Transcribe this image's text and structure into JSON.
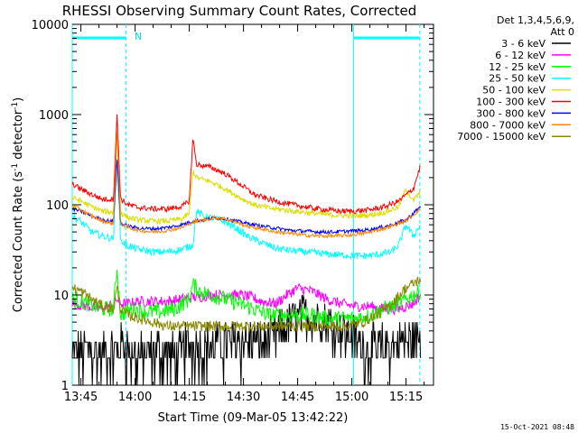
{
  "chart_data": {
    "type": "line",
    "title": "RHESSI Observing Summary Count Rates, Corrected",
    "xlabel": "Start Time (09-Mar-05 13:42:22)",
    "ylabel_main": "Corrected Count Rate (s",
    "ylabel_sup1": "-1",
    "ylabel_mid": " detector",
    "ylabel_sup2": "-1",
    "ylabel_end": ")",
    "yscale": "log",
    "ylim": [
      1,
      10000
    ],
    "xlim_minutes": [
      -2.4,
      97.6
    ],
    "x_ticks": [
      {
        "m": 0,
        "label": "13:45"
      },
      {
        "m": 15,
        "label": "14:00"
      },
      {
        "m": 30,
        "label": "14:15"
      },
      {
        "m": 45,
        "label": "14:30"
      },
      {
        "m": 60,
        "label": "14:45"
      },
      {
        "m": 75,
        "label": "15:00"
      },
      {
        "m": 90,
        "label": "15:15"
      }
    ],
    "y_ticks": [
      {
        "v": 1,
        "label": "1"
      },
      {
        "v": 10,
        "label": "10"
      },
      {
        "v": 100,
        "label": "100"
      },
      {
        "v": 1000,
        "label": "1000"
      },
      {
        "v": 10000,
        "label": "10000"
      }
    ],
    "legend": {
      "placement": "top-right",
      "header1": "Det 1,3,4,5,6,9,",
      "header2": "Att 0"
    },
    "annotations": {
      "night_marker": "N",
      "footer_date": "15-Oct-2021 08:48"
    },
    "series": [
      {
        "name": "3 - 6 keV",
        "color": "#000000",
        "points": [
          [
            -2.4,
            2
          ],
          [
            2,
            2.5
          ],
          [
            6,
            2
          ],
          [
            10,
            2.5
          ],
          [
            12,
            3
          ],
          [
            14,
            2
          ],
          [
            18,
            2
          ],
          [
            22,
            2.5
          ],
          [
            26,
            2
          ],
          [
            30,
            3
          ],
          [
            34,
            2.5
          ],
          [
            38,
            3
          ],
          [
            42,
            3
          ],
          [
            46,
            3
          ],
          [
            50,
            3
          ],
          [
            54,
            3.5
          ],
          [
            58,
            5
          ],
          [
            62,
            6
          ],
          [
            66,
            5.5
          ],
          [
            70,
            4.5
          ],
          [
            74,
            3.5
          ],
          [
            76,
            3
          ],
          [
            80,
            2.5
          ],
          [
            84,
            2.5
          ],
          [
            88,
            3
          ],
          [
            92,
            3
          ],
          [
            94,
            3.5
          ]
        ]
      },
      {
        "name": "6 - 12 keV",
        "color": "#ff00ff",
        "points": [
          [
            -2.4,
            8
          ],
          [
            2,
            7.5
          ],
          [
            6,
            7
          ],
          [
            9,
            8
          ],
          [
            10,
            9
          ],
          [
            11,
            8
          ],
          [
            13,
            8
          ],
          [
            16,
            8.5
          ],
          [
            20,
            8.5
          ],
          [
            24,
            8.5
          ],
          [
            28,
            9
          ],
          [
            31,
            9.5
          ],
          [
            33,
            9.5
          ],
          [
            36,
            10
          ],
          [
            40,
            10
          ],
          [
            44,
            10
          ],
          [
            47,
            9.5
          ],
          [
            50,
            8.5
          ],
          [
            54,
            8
          ],
          [
            57,
            10
          ],
          [
            60,
            12
          ],
          [
            64,
            11
          ],
          [
            68,
            9
          ],
          [
            72,
            8
          ],
          [
            76,
            7.5
          ],
          [
            80,
            7.5
          ],
          [
            84,
            7
          ],
          [
            88,
            7
          ],
          [
            92,
            8
          ],
          [
            94,
            10
          ]
        ]
      },
      {
        "name": "12 - 25 keV",
        "color": "#00ff00",
        "points": [
          [
            -2.4,
            9
          ],
          [
            2,
            8
          ],
          [
            6,
            7
          ],
          [
            9,
            7
          ],
          [
            10,
            20
          ],
          [
            11,
            6
          ],
          [
            14,
            7
          ],
          [
            18,
            6.5
          ],
          [
            22,
            6.5
          ],
          [
            26,
            7
          ],
          [
            30,
            9
          ],
          [
            31,
            13
          ],
          [
            33,
            11
          ],
          [
            36,
            10
          ],
          [
            40,
            9
          ],
          [
            44,
            8
          ],
          [
            48,
            7
          ],
          [
            52,
            6
          ],
          [
            56,
            6
          ],
          [
            60,
            6
          ],
          [
            64,
            6
          ],
          [
            68,
            5.5
          ],
          [
            72,
            5.5
          ],
          [
            76,
            5.5
          ],
          [
            80,
            6
          ],
          [
            84,
            7
          ],
          [
            88,
            8
          ],
          [
            92,
            10
          ],
          [
            94,
            11
          ]
        ]
      },
      {
        "name": "25 - 50 keV",
        "color": "#00ffff",
        "points": [
          [
            -2.4,
            75
          ],
          [
            0,
            65
          ],
          [
            3,
            50
          ],
          [
            6,
            45
          ],
          [
            9,
            42
          ],
          [
            10,
            360
          ],
          [
            11,
            40
          ],
          [
            13,
            35
          ],
          [
            16,
            32
          ],
          [
            20,
            30
          ],
          [
            24,
            30
          ],
          [
            28,
            32
          ],
          [
            31,
            36
          ],
          [
            32,
            85
          ],
          [
            34,
            75
          ],
          [
            37,
            70
          ],
          [
            40,
            64
          ],
          [
            43,
            55
          ],
          [
            46,
            45
          ],
          [
            50,
            38
          ],
          [
            54,
            33
          ],
          [
            58,
            31
          ],
          [
            62,
            30
          ],
          [
            66,
            29
          ],
          [
            70,
            28
          ],
          [
            74,
            27.5
          ],
          [
            78,
            27
          ],
          [
            82,
            28
          ],
          [
            86,
            30
          ],
          [
            88,
            36
          ],
          [
            90,
            60
          ],
          [
            92,
            45
          ],
          [
            94,
            60
          ]
        ]
      },
      {
        "name": "50 - 100 keV",
        "color": "#dddd00",
        "points": [
          [
            -2.4,
            120
          ],
          [
            0,
            110
          ],
          [
            3,
            95
          ],
          [
            6,
            85
          ],
          [
            9,
            82
          ],
          [
            10,
            600
          ],
          [
            11,
            82
          ],
          [
            13,
            72
          ],
          [
            16,
            68
          ],
          [
            20,
            66
          ],
          [
            24,
            66
          ],
          [
            28,
            70
          ],
          [
            30,
            80
          ],
          [
            31,
            240
          ],
          [
            32,
            200
          ],
          [
            36,
            180
          ],
          [
            40,
            150
          ],
          [
            44,
            120
          ],
          [
            48,
            100
          ],
          [
            52,
            92
          ],
          [
            56,
            88
          ],
          [
            60,
            84
          ],
          [
            64,
            81
          ],
          [
            68,
            78
          ],
          [
            72,
            76
          ],
          [
            76,
            75
          ],
          [
            80,
            77
          ],
          [
            84,
            82
          ],
          [
            88,
            95
          ],
          [
            90,
            150
          ],
          [
            92,
            110
          ],
          [
            94,
            140
          ]
        ]
      },
      {
        "name": "100 - 300 keV",
        "color": "#ff0000",
        "points": [
          [
            -2.4,
            170
          ],
          [
            0,
            150
          ],
          [
            3,
            130
          ],
          [
            6,
            115
          ],
          [
            9,
            115
          ],
          [
            10,
            1000
          ],
          [
            11,
            115
          ],
          [
            13,
            100
          ],
          [
            16,
            93
          ],
          [
            20,
            90
          ],
          [
            24,
            90
          ],
          [
            28,
            96
          ],
          [
            30,
            110
          ],
          [
            31,
            550
          ],
          [
            32,
            280
          ],
          [
            36,
            260
          ],
          [
            40,
            220
          ],
          [
            44,
            170
          ],
          [
            48,
            130
          ],
          [
            52,
            115
          ],
          [
            56,
            105
          ],
          [
            60,
            98
          ],
          [
            64,
            92
          ],
          [
            68,
            88
          ],
          [
            72,
            85
          ],
          [
            76,
            85
          ],
          [
            80,
            88
          ],
          [
            84,
            95
          ],
          [
            88,
            110
          ],
          [
            92,
            150
          ],
          [
            94,
            270
          ]
        ]
      },
      {
        "name": "300 - 800 keV",
        "color": "#0000ff",
        "points": [
          [
            -2.4,
            90
          ],
          [
            0,
            85
          ],
          [
            3,
            75
          ],
          [
            6,
            68
          ],
          [
            9,
            65
          ],
          [
            10,
            330
          ],
          [
            11,
            62
          ],
          [
            13,
            58
          ],
          [
            16,
            55
          ],
          [
            20,
            54
          ],
          [
            24,
            56
          ],
          [
            28,
            60
          ],
          [
            31,
            66
          ],
          [
            34,
            68
          ],
          [
            37,
            72
          ],
          [
            40,
            70
          ],
          [
            43,
            66
          ],
          [
            46,
            62
          ],
          [
            50,
            58
          ],
          [
            54,
            55
          ],
          [
            58,
            52
          ],
          [
            62,
            51
          ],
          [
            66,
            50
          ],
          [
            70,
            50
          ],
          [
            74,
            51
          ],
          [
            78,
            52
          ],
          [
            82,
            55
          ],
          [
            86,
            60
          ],
          [
            90,
            68
          ],
          [
            94,
            95
          ]
        ]
      },
      {
        "name": "800 - 7000 keV",
        "color": "#ff8800",
        "points": [
          [
            -2.4,
            98
          ],
          [
            0,
            88
          ],
          [
            3,
            75
          ],
          [
            6,
            66
          ],
          [
            9,
            62
          ],
          [
            10,
            700
          ],
          [
            11,
            62
          ],
          [
            13,
            56
          ],
          [
            16,
            52
          ],
          [
            20,
            50
          ],
          [
            24,
            52
          ],
          [
            28,
            56
          ],
          [
            31,
            64
          ],
          [
            34,
            68
          ],
          [
            37,
            72
          ],
          [
            40,
            70
          ],
          [
            43,
            64
          ],
          [
            46,
            58
          ],
          [
            50,
            54
          ],
          [
            54,
            50
          ],
          [
            58,
            48
          ],
          [
            62,
            46
          ],
          [
            66,
            45
          ],
          [
            70,
            45
          ],
          [
            74,
            46
          ],
          [
            78,
            48
          ],
          [
            82,
            52
          ],
          [
            86,
            58
          ],
          [
            90,
            66
          ],
          [
            94,
            90
          ]
        ]
      },
      {
        "name": "7000 - 15000 keV",
        "color": "#888800",
        "points": [
          [
            -2.4,
            12
          ],
          [
            0,
            11
          ],
          [
            3,
            9
          ],
          [
            6,
            7.5
          ],
          [
            9,
            7
          ],
          [
            10,
            12
          ],
          [
            11,
            7
          ],
          [
            13,
            6
          ],
          [
            16,
            5.5
          ],
          [
            20,
            5
          ],
          [
            24,
            4.5
          ],
          [
            28,
            4.5
          ],
          [
            31,
            4.5
          ],
          [
            34,
            4.5
          ],
          [
            38,
            4.5
          ],
          [
            42,
            4.5
          ],
          [
            46,
            4.5
          ],
          [
            50,
            4.5
          ],
          [
            54,
            4.5
          ],
          [
            58,
            4.5
          ],
          [
            62,
            4.5
          ],
          [
            66,
            4.5
          ],
          [
            70,
            4.5
          ],
          [
            74,
            4.5
          ],
          [
            78,
            5
          ],
          [
            82,
            6
          ],
          [
            86,
            8
          ],
          [
            90,
            12
          ],
          [
            94,
            15
          ]
        ]
      }
    ],
    "markers": {
      "color": "#00ffff",
      "solid_verticals": [
        -2.4,
        75.5
      ],
      "dashed_verticals": [
        12.5,
        93.8
      ],
      "top_bars": [
        [
          -2.4,
          12.5
        ],
        [
          75.5,
          93.8
        ]
      ]
    }
  }
}
